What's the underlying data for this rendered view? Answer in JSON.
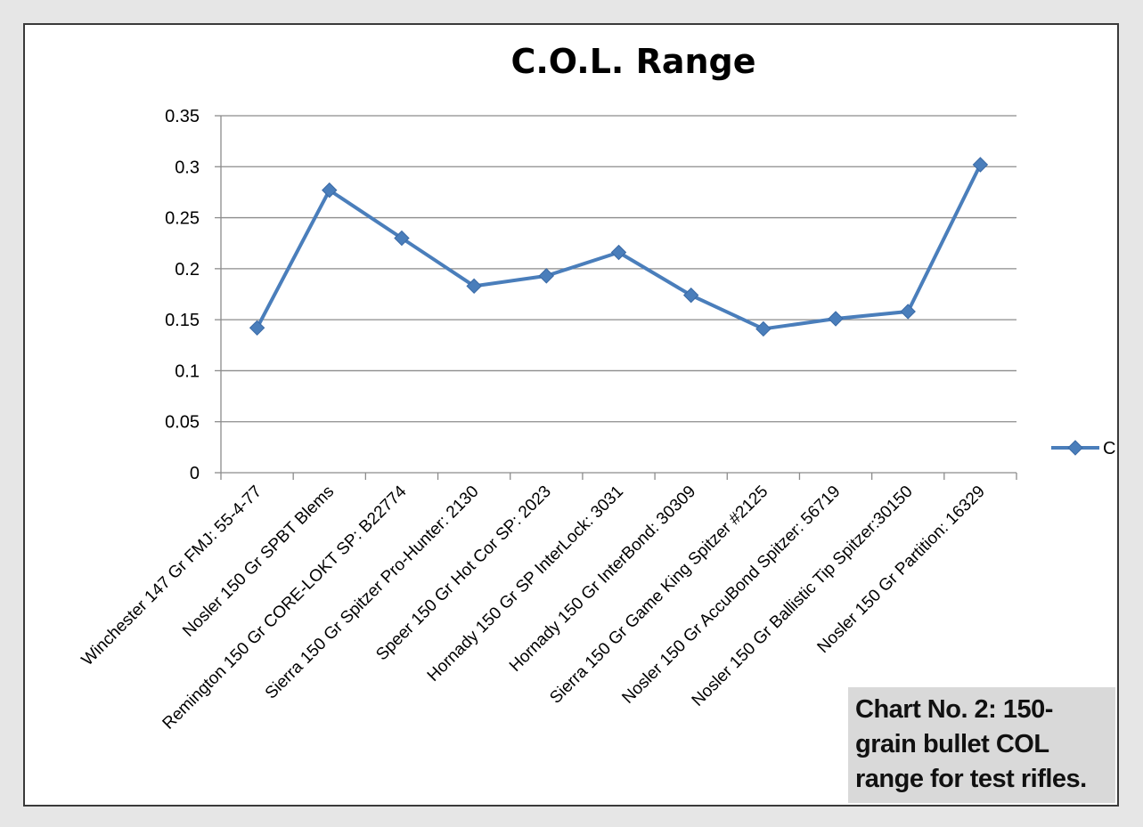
{
  "caption": "Chart No. 2: 150-grain bullet COL range for test rifles.",
  "chart_data": {
    "type": "line",
    "title": "C.O.L. Range",
    "xlabel": "",
    "ylabel": "",
    "ylim": [
      0,
      0.35
    ],
    "ytick_labels": [
      "0",
      "0.05",
      "0.1",
      "0.15",
      "0.2",
      "0.25",
      "0.3",
      "0.35"
    ],
    "yticks": [
      0,
      0.05,
      0.1,
      0.15,
      0.2,
      0.25,
      0.3,
      0.35
    ],
    "grid": true,
    "legend": "right",
    "categories": [
      "Winchester 147 Gr FMJ: 55-4-77",
      "Nosler 150 Gr SPBT Blems",
      "Remington 150 Gr CORE-LOKT SP: B22774",
      "Sierra 150 Gr Spitzer Pro-Hunter: 2130",
      "Speer 150 Gr Hot Cor SP: 2023",
      "Hornady 150 Gr  SP InterLock: 3031",
      "Hornady 150 Gr InterBond: 30309",
      "Sierra 150 Gr Game King Spitzer #2125",
      "Nosler 150 Gr AccuBond Spitzer: 56719",
      "Nosler 150 Gr Ballistic Tip Spitzer:30150",
      "Nosler 150 Gr Partition: 16329"
    ],
    "series": [
      {
        "name": "C",
        "values": [
          0.142,
          0.277,
          0.23,
          0.183,
          0.193,
          0.216,
          0.174,
          0.141,
          0.151,
          0.158,
          0.302
        ],
        "color": "#4a7ebb"
      }
    ]
  }
}
